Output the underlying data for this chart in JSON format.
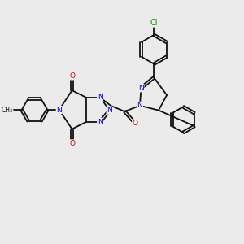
{
  "bg": "#ebebeb",
  "bc": "#111111",
  "bw": 1.3,
  "dbo": 0.05,
  "NC": "#0000dd",
  "OC": "#cc0000",
  "ClC": "#009900",
  "CC": "#111111",
  "fs": 6.5,
  "fw": 3.0,
  "fh": 3.0,
  "dpi": 100,
  "xlim": [
    0,
    10
  ],
  "ylim": [
    0,
    10
  ]
}
